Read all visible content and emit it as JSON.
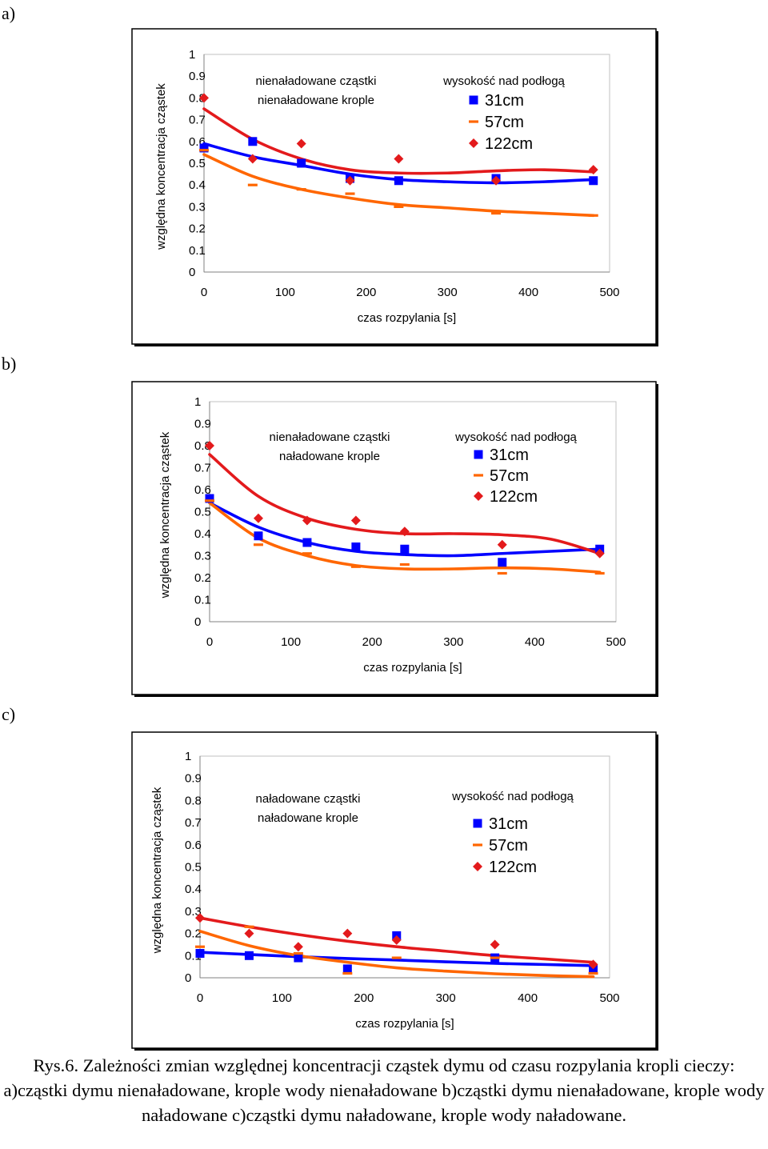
{
  "panels": [
    {
      "label": "a)",
      "chart_data": {
        "type": "scatter",
        "title_lines": [
          "nienaładowane cząstki",
          "nienaładowane krople"
        ],
        "xlabel": "czas rozpylania [s]",
        "ylabel": "względna koncentracja cząstek",
        "xlim": [
          0,
          500
        ],
        "ylim": [
          0,
          1
        ],
        "x_ticks": [
          "0",
          "100",
          "200",
          "300",
          "400",
          "500"
        ],
        "y_ticks": [
          "0",
          "0.1",
          "0.2",
          "0.3",
          "0.4",
          "0.5",
          "0.6",
          "0.7",
          "0.8",
          "0.9",
          "1"
        ],
        "legend_title": "wysokość nad podłogą",
        "series": [
          {
            "name": "31cm",
            "marker": "square",
            "color": "#0000ff",
            "x": [
              0,
              60,
              120,
              180,
              240,
              360,
              480
            ],
            "y": [
              0.57,
              0.6,
              0.5,
              0.43,
              0.42,
              0.43,
              0.42
            ],
            "trend_x": [
              0,
              60,
              120,
              180,
              240,
              300,
              360,
              420,
              480
            ],
            "trend_y": [
              0.59,
              0.53,
              0.49,
              0.45,
              0.425,
              0.415,
              0.41,
              0.415,
              0.425
            ]
          },
          {
            "name": "57cm",
            "marker": "dash",
            "color": "#ff6600",
            "x": [
              0,
              60,
              120,
              180,
              240,
              360,
              480
            ],
            "y": [
              0.56,
              0.4,
              0.38,
              0.36,
              0.3,
              0.27,
              0.26
            ],
            "trend_x": [
              0,
              60,
              120,
              180,
              240,
              300,
              360,
              420,
              480
            ],
            "trend_y": [
              0.54,
              0.44,
              0.38,
              0.34,
              0.31,
              0.295,
              0.28,
              0.27,
              0.26
            ]
          },
          {
            "name": "122cm",
            "marker": "diamond",
            "color": "#e31a1c",
            "x": [
              0,
              60,
              120,
              180,
              240,
              360,
              480
            ],
            "y": [
              0.8,
              0.52,
              0.59,
              0.42,
              0.52,
              0.42,
              0.47
            ],
            "trend_x": [
              0,
              60,
              120,
              180,
              240,
              300,
              360,
              420,
              480
            ],
            "trend_y": [
              0.75,
              0.61,
              0.52,
              0.47,
              0.455,
              0.455,
              0.465,
              0.47,
              0.46
            ]
          }
        ]
      }
    },
    {
      "label": "b)",
      "chart_data": {
        "type": "scatter",
        "title_lines": [
          "nienaładowane cząstki",
          "naładowane krople"
        ],
        "xlabel": "czas rozpylania [s]",
        "ylabel": "względna koncentracja cząstek",
        "xlim": [
          0,
          500
        ],
        "ylim": [
          0,
          1
        ],
        "x_ticks": [
          "0",
          "100",
          "200",
          "300",
          "400",
          "500"
        ],
        "y_ticks": [
          "0",
          "0.1",
          "0.2",
          "0.3",
          "0.4",
          "0.5",
          "0.6",
          "0.7",
          "0.8",
          "0.9",
          "1"
        ],
        "legend_title": "wysokość nad podłogą",
        "series": [
          {
            "name": "31cm",
            "marker": "square",
            "color": "#0000ff",
            "x": [
              0,
              60,
              120,
              180,
              240,
              360,
              480
            ],
            "y": [
              0.56,
              0.39,
              0.36,
              0.34,
              0.33,
              0.27,
              0.33
            ],
            "trend_x": [
              0,
              60,
              120,
              180,
              240,
              300,
              360,
              420,
              480
            ],
            "trend_y": [
              0.54,
              0.43,
              0.36,
              0.32,
              0.305,
              0.3,
              0.31,
              0.32,
              0.33
            ]
          },
          {
            "name": "57cm",
            "marker": "dash",
            "color": "#ff6600",
            "x": [
              0,
              60,
              120,
              180,
              240,
              360,
              480
            ],
            "y": [
              0.55,
              0.35,
              0.31,
              0.25,
              0.26,
              0.22,
              0.22
            ],
            "trend_x": [
              0,
              60,
              120,
              180,
              240,
              300,
              360,
              420,
              480
            ],
            "trend_y": [
              0.54,
              0.38,
              0.3,
              0.255,
              0.24,
              0.24,
              0.245,
              0.24,
              0.225
            ]
          },
          {
            "name": "122cm",
            "marker": "diamond",
            "color": "#e31a1c",
            "x": [
              0,
              60,
              120,
              180,
              240,
              360,
              480
            ],
            "y": [
              0.8,
              0.47,
              0.46,
              0.46,
              0.41,
              0.35,
              0.31
            ],
            "trend_x": [
              0,
              60,
              120,
              180,
              240,
              300,
              360,
              420,
              480
            ],
            "trend_y": [
              0.76,
              0.57,
              0.47,
              0.42,
              0.4,
              0.4,
              0.395,
              0.375,
              0.31
            ]
          }
        ]
      }
    },
    {
      "label": "c)",
      "chart_data": {
        "type": "scatter",
        "title_lines": [
          "naładowane cząstki",
          "naładowane krople"
        ],
        "xlabel": "czas rozpylania [s]",
        "ylabel": "względna koncentracja cząstek",
        "xlim": [
          0,
          500
        ],
        "ylim": [
          0,
          1
        ],
        "x_ticks": [
          "0",
          "100",
          "200",
          "300",
          "400",
          "500"
        ],
        "y_ticks": [
          "0",
          "0.1",
          "0.2",
          "0.3",
          "0.4",
          "0.5",
          "0.6",
          "0.7",
          "0.8",
          "0.9",
          "1"
        ],
        "legend_title": "wysokość nad podłogą",
        "series": [
          {
            "name": "31cm",
            "marker": "square",
            "color": "#0000ff",
            "x": [
              0,
              60,
              120,
              180,
              240,
              360,
              480
            ],
            "y": [
              0.11,
              0.1,
              0.09,
              0.04,
              0.19,
              0.09,
              0.04
            ],
            "trend_x": [
              0,
              60,
              120,
              180,
              240,
              300,
              360,
              420,
              480
            ],
            "trend_y": [
              0.115,
              0.105,
              0.095,
              0.087,
              0.08,
              0.072,
              0.065,
              0.06,
              0.055
            ]
          },
          {
            "name": "57cm",
            "marker": "dash",
            "color": "#ff6600",
            "x": [
              0,
              60,
              120,
              180,
              240,
              360,
              480
            ],
            "y": [
              0.14,
              0.23,
              0.11,
              0.02,
              0.09,
              0.09,
              0.02
            ],
            "trend_x": [
              0,
              60,
              120,
              180,
              240,
              300,
              360,
              420,
              480
            ],
            "trend_y": [
              0.21,
              0.145,
              0.1,
              0.07,
              0.045,
              0.03,
              0.018,
              0.01,
              0.005
            ]
          },
          {
            "name": "122cm",
            "marker": "diamond",
            "color": "#e31a1c",
            "x": [
              0,
              60,
              120,
              180,
              240,
              360,
              480
            ],
            "y": [
              0.27,
              0.2,
              0.14,
              0.2,
              0.17,
              0.15,
              0.06
            ],
            "trend_x": [
              0,
              60,
              120,
              180,
              240,
              300,
              360,
              420,
              480
            ],
            "trend_y": [
              0.27,
              0.23,
              0.195,
              0.165,
              0.14,
              0.12,
              0.1,
              0.085,
              0.07
            ]
          }
        ]
      }
    }
  ],
  "caption": "Rys.6. Zależności zmian względnej koncentracji cząstek dymu od czasu rozpylania kropli cieczy: a)cząstki dymu nienaładowane, krople wody nienaładowane b)cząstki dymu nienaładowane, krople wody naładowane c)cząstki dymu naładowane, krople wody naładowane."
}
